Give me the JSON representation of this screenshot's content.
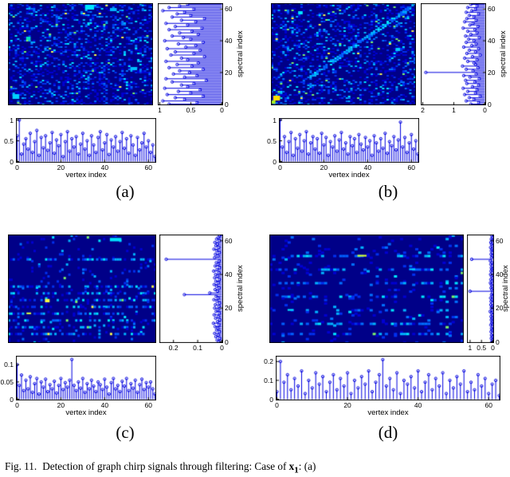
{
  "caption": {
    "fig_label": "Fig. 11.",
    "text_before": "Detection of graph chirp signals through filtering: Case of ",
    "signal_var": "x",
    "signal_sub": "1",
    "text_after": ": (a)"
  },
  "colors": {
    "stem": "#0000e0",
    "heatmap_base": "#000088",
    "frame": "#000000",
    "background": "#ffffff"
  },
  "chart_data": [
    {
      "panel": "(a)",
      "heatmap": {
        "type": "heatmap",
        "rows": 64,
        "cols": 64,
        "seed": 17,
        "density": 0.3,
        "diagonal": false,
        "streak_rows": [],
        "hotspots": [
          {
            "row": 1,
            "col": 34,
            "w": 4,
            "h": 3,
            "color": "#00e8ff"
          },
          {
            "row": 3,
            "col": 45,
            "w": 3,
            "h": 2,
            "color": "#00b4ff"
          },
          {
            "row": 57,
            "col": 2,
            "w": 3,
            "h": 3,
            "color": "#00d2ff"
          },
          {
            "row": 40,
            "col": 54,
            "w": 3,
            "h": 2,
            "color": "#00c0ff"
          },
          {
            "row": 21,
            "col": 8,
            "w": 2,
            "h": 2,
            "color": "#00e0c0"
          }
        ]
      },
      "spectral_stem": {
        "type": "stem",
        "orientation": "horizontal",
        "ylabel": "spectral index",
        "x_ticks": [
          1,
          0.5,
          0
        ],
        "x_max": 1.0,
        "y_ticks": [
          0,
          20,
          40,
          60
        ],
        "values": [
          0.85,
          0.4,
          0.95,
          0.6,
          0.75,
          0.3,
          0.88,
          0.5,
          0.7,
          0.35,
          0.92,
          0.55,
          0.65,
          0.45,
          0.8,
          0.25,
          0.9,
          0.6,
          0.4,
          0.78,
          0.52,
          0.68,
          0.3,
          0.85,
          0.48,
          0.72,
          0.38,
          0.9,
          0.55,
          0.65,
          0.28,
          0.82,
          0.45,
          0.75,
          0.35,
          0.88,
          0.58,
          0.42,
          0.7,
          0.3,
          0.92,
          0.5,
          0.62,
          0.8,
          0.38,
          0.68,
          0.48,
          0.85,
          0.32,
          0.75,
          0.55,
          0.9,
          0.42,
          0.65,
          0.28,
          0.8,
          0.5,
          0.72,
          0.6,
          0.95,
          0.45,
          0.85,
          0.68,
          0.55
        ]
      },
      "vertex_stem": {
        "type": "stem",
        "orientation": "vertical",
        "xlabel": "vertex index",
        "x_ticks": [
          0,
          20,
          40,
          60
        ],
        "y_ticks": [
          0,
          0.5,
          1
        ],
        "y_max": 1.0,
        "values": [
          0.62,
          1,
          0.18,
          0.42,
          0.55,
          0.3,
          0.68,
          0.22,
          0.48,
          0.75,
          0.15,
          0.58,
          0.33,
          0.62,
          0.27,
          0.45,
          0.7,
          0.2,
          0.52,
          0.38,
          0.65,
          0.12,
          0.48,
          0.72,
          0.25,
          0.55,
          0.35,
          0.6,
          0.18,
          0.42,
          0.68,
          0.3,
          0.5,
          0.15,
          0.62,
          0.4,
          0.22,
          0.58,
          0.72,
          0.28,
          0.45,
          0.65,
          0.17,
          0.52,
          0.35,
          0.6,
          0.25,
          0.48,
          0.7,
          0.32,
          0.55,
          0.2,
          0.62,
          0.4,
          0.15,
          0.58,
          0.28,
          0.45,
          0.68,
          0.35,
          0.5,
          0.22,
          0.4,
          0.12
        ]
      }
    },
    {
      "panel": "(b)",
      "heatmap": {
        "type": "heatmap",
        "rows": 64,
        "cols": 64,
        "seed": 29,
        "density": 0.3,
        "diagonal": true,
        "streak_rows": [],
        "hotspots": [
          {
            "row": 58,
            "col": 1,
            "w": 3,
            "h": 3,
            "color": "#ffe000"
          },
          {
            "row": 61,
            "col": 0,
            "w": 2,
            "h": 2,
            "color": "#a8f020"
          },
          {
            "row": 5,
            "col": 12,
            "w": 2,
            "h": 2,
            "color": "#00e8ff"
          },
          {
            "row": 28,
            "col": 55,
            "w": 2,
            "h": 2,
            "color": "#00c8ff"
          }
        ]
      },
      "spectral_stem": {
        "type": "stem",
        "orientation": "horizontal",
        "ylabel": "spectral index",
        "x_ticks": [
          2,
          1,
          0
        ],
        "x_max": 2.0,
        "y_ticks": [
          0,
          20,
          40,
          60
        ],
        "values": [
          0.45,
          0.2,
          0.6,
          0.35,
          0.5,
          0.15,
          0.65,
          0.3,
          0.55,
          0.25,
          0.7,
          0.4,
          0.2,
          0.58,
          0.32,
          0.62,
          0.18,
          0.48,
          0.68,
          0.28,
          1.9,
          0.38,
          0.6,
          0.22,
          0.72,
          0.3,
          0.35,
          0.55,
          0.25,
          0.65,
          0.4,
          0.15,
          0.58,
          0.3,
          0.5,
          0.2,
          0.68,
          0.42,
          0.28,
          0.6,
          0.35,
          0.52,
          0.18,
          0.62,
          0.45,
          0.25,
          0.55,
          0.32,
          0.7,
          0.22,
          0.48,
          0.38,
          0.65,
          0.28,
          0.58,
          0.35,
          0.5,
          0.2,
          0.6,
          0.42,
          0.3,
          0.55,
          0.25,
          0.45
        ]
      },
      "vertex_stem": {
        "type": "stem",
        "orientation": "vertical",
        "xlabel": "vertex index",
        "x_ticks": [
          0,
          20,
          40,
          60
        ],
        "y_ticks": [
          0,
          0.5,
          1
        ],
        "y_max": 1.0,
        "values": [
          1,
          0.35,
          0.6,
          0.22,
          0.48,
          0.7,
          0.15,
          0.55,
          0.32,
          0.65,
          0.25,
          0.5,
          0.72,
          0.18,
          0.45,
          0.6,
          0.3,
          0.55,
          0.2,
          0.68,
          0.4,
          0.58,
          0.15,
          0.48,
          0.35,
          0.62,
          0.25,
          0.52,
          0.7,
          0.3,
          0.45,
          0.18,
          0.6,
          0.38,
          0.55,
          0.22,
          0.65,
          0.42,
          0.28,
          0.58,
          0.35,
          0.5,
          0.15,
          0.62,
          0.45,
          0.25,
          0.55,
          0.32,
          0.68,
          0.2,
          0.48,
          0.38,
          0.6,
          0.28,
          0.52,
          0.95,
          0.35,
          0.58,
          0.22,
          0.45,
          0.65,
          0.3,
          0.5,
          0.18
        ]
      }
    },
    {
      "panel": "(c)",
      "heatmap": {
        "type": "heatmap",
        "rows": 64,
        "cols": 64,
        "seed": 41,
        "density": 0.055,
        "diagonal": false,
        "streak_rows": [
          14,
          30,
          34,
          38,
          42,
          46,
          50,
          54,
          58
        ],
        "hotspots": [
          {
            "row": 2,
            "col": 44,
            "w": 5,
            "h": 2,
            "color": "#00e4ff"
          },
          {
            "row": 38,
            "col": 16,
            "w": 2,
            "h": 2,
            "color": "#f8f840"
          },
          {
            "row": 46,
            "col": 8,
            "w": 2,
            "h": 1,
            "color": "#d8ff40"
          }
        ]
      },
      "spectral_stem": {
        "type": "stem",
        "orientation": "horizontal",
        "ylabel": "spectral index",
        "x_ticks": [
          0.2,
          0.1,
          0
        ],
        "x_max": 0.25,
        "y_ticks": [
          0,
          20,
          40,
          60
        ],
        "values": [
          0.012,
          0.02,
          0.008,
          0.025,
          0.015,
          0.03,
          0.01,
          0.022,
          0.016,
          0.028,
          0.012,
          0.035,
          0.018,
          0.008,
          0.026,
          0.014,
          0.032,
          0.01,
          0.024,
          0.016,
          0.03,
          0.012,
          0.027,
          0.009,
          0.02,
          0.033,
          0.015,
          0.024,
          0.155,
          0.05,
          0.018,
          0.028,
          0.011,
          0.022,
          0.032,
          0.014,
          0.025,
          0.01,
          0.03,
          0.017,
          0.026,
          0.012,
          0.034,
          0.02,
          0.009,
          0.028,
          0.015,
          0.023,
          0.011,
          0.23,
          0.03,
          0.016,
          0.027,
          0.01,
          0.021,
          0.033,
          0.013,
          0.025,
          0.018,
          0.029,
          0.01,
          0.022,
          0.015,
          0.008
        ]
      },
      "vertex_stem": {
        "type": "stem",
        "orientation": "vertical",
        "xlabel": "vertex index",
        "x_ticks": [
          0,
          20,
          40,
          60
        ],
        "y_ticks": [
          0,
          0.05,
          0.1
        ],
        "y_max": 0.12,
        "values": [
          0.1,
          0.04,
          0.07,
          0.025,
          0.055,
          0.03,
          0.065,
          0.02,
          0.045,
          0.06,
          0.015,
          0.05,
          0.035,
          0.058,
          0.022,
          0.042,
          0.03,
          0.052,
          0.018,
          0.04,
          0.06,
          0.028,
          0.048,
          0.035,
          0.055,
          0.115,
          0.04,
          0.025,
          0.05,
          0.032,
          0.06,
          0.02,
          0.045,
          0.03,
          0.055,
          0.038,
          0.022,
          0.05,
          0.042,
          0.028,
          0.058,
          0.035,
          0.015,
          0.048,
          0.06,
          0.03,
          0.04,
          0.022,
          0.052,
          0.038,
          0.06,
          0.025,
          0.045,
          0.032,
          0.055,
          0.02,
          0.042,
          0.058,
          0.028,
          0.048,
          0.035,
          0.05,
          0.03,
          0.015
        ]
      }
    },
    {
      "panel": "(d)",
      "heatmap": {
        "type": "heatmap",
        "rows": 64,
        "cols": 64,
        "seed": 53,
        "density": 0.05,
        "diagonal": false,
        "streak_rows": [
          12,
          20,
          28,
          36,
          44,
          52,
          58
        ],
        "hotspots": [
          {
            "row": 12,
            "col": 29,
            "w": 3,
            "h": 1,
            "color": "#d8ff30"
          },
          {
            "row": 44,
            "col": 6,
            "w": 2,
            "h": 1,
            "color": "#00e8ff"
          },
          {
            "row": 20,
            "col": 46,
            "w": 2,
            "h": 1,
            "color": "#00d2ff"
          }
        ]
      },
      "spectral_stem": {
        "type": "stem",
        "orientation": "horizontal",
        "ylabel": "spectral index",
        "x_ticks": [
          1,
          0.5,
          0
        ],
        "x_max": 1.05,
        "y_ticks": [
          0,
          20,
          40,
          60
        ],
        "values": [
          0.05,
          0.02,
          0.07,
          0.03,
          0.06,
          0.01,
          0.08,
          0.04,
          0.06,
          0.02,
          0.09,
          0.05,
          0.03,
          0.07,
          0.04,
          0.08,
          0.02,
          0.06,
          0.12,
          0.03,
          0.07,
          0.05,
          0.09,
          0.02,
          0.08,
          0.04,
          0.1,
          0.03,
          0.06,
          0.02,
          1,
          0.05,
          0.08,
          0.03,
          0.07,
          0.11,
          0.04,
          0.09,
          0.02,
          0.06,
          0.1,
          0.03,
          0.08,
          0.05,
          0.07,
          0.02,
          0.09,
          0.04,
          0.11,
          0.93,
          0.06,
          0.03,
          0.08,
          0.02,
          0.07,
          0.05,
          0.1,
          0.03,
          0.06,
          0.09,
          0.04,
          0.07,
          0.02,
          0.05
        ]
      },
      "vertex_stem": {
        "type": "stem",
        "orientation": "vertical",
        "xlabel": "vertex index",
        "x_ticks": [
          0,
          20,
          40,
          60
        ],
        "y_ticks": [
          0,
          0.1,
          0.2
        ],
        "y_max": 0.22,
        "values": [
          0.04,
          0.2,
          0.09,
          0.13,
          0.05,
          0.11,
          0.07,
          0.15,
          0.03,
          0.1,
          0.06,
          0.14,
          0.08,
          0.12,
          0.04,
          0.09,
          0.13,
          0.05,
          0.11,
          0.07,
          0.14,
          0.03,
          0.1,
          0.06,
          0.12,
          0.08,
          0.15,
          0.04,
          0.09,
          0.13,
          0.21,
          0.07,
          0.11,
          0.05,
          0.14,
          0.03,
          0.1,
          0.08,
          0.12,
          0.06,
          0.15,
          0.04,
          0.09,
          0.13,
          0.05,
          0.11,
          0.07,
          0.14,
          0.03,
          0.1,
          0.06,
          0.12,
          0.08,
          0.15,
          0.04,
          0.09,
          0.05,
          0.13,
          0.07,
          0.11,
          0.03,
          0.08,
          0.1,
          0.02
        ]
      }
    }
  ]
}
